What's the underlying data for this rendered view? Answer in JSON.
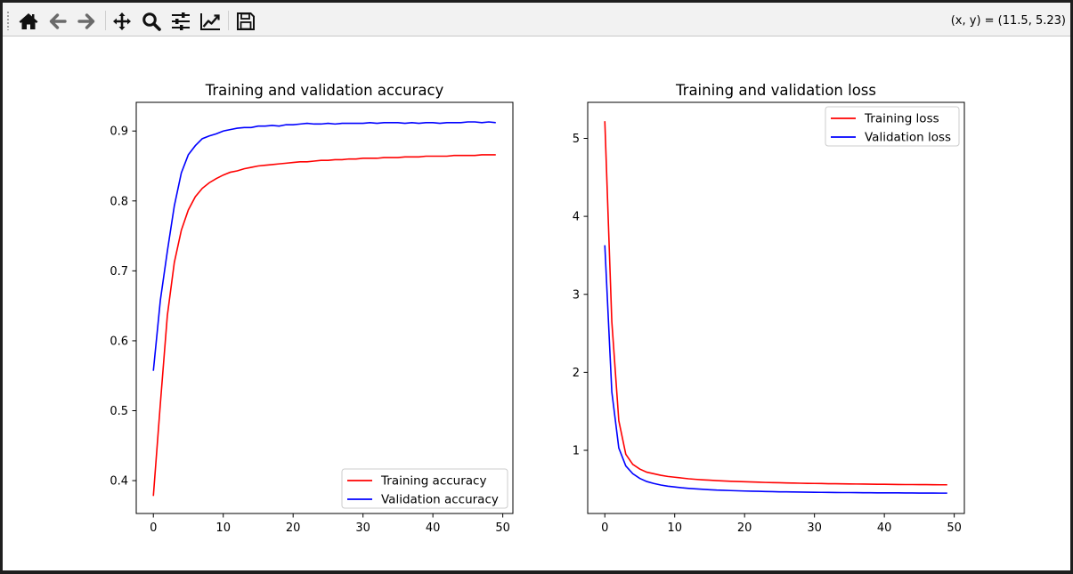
{
  "toolbar": {
    "buttons": [
      {
        "name": "home-icon",
        "icon": "home"
      },
      {
        "name": "back-icon",
        "icon": "arrow-left"
      },
      {
        "name": "forward-icon",
        "icon": "arrow-right"
      },
      {
        "name": "pan-icon",
        "icon": "move"
      },
      {
        "name": "zoom-icon",
        "icon": "magnifier"
      },
      {
        "name": "configure-subplots-icon",
        "icon": "sliders"
      },
      {
        "name": "edit-axis-icon",
        "icon": "line-chart"
      },
      {
        "name": "save-icon",
        "icon": "floppy-disk"
      }
    ],
    "coords_text": "(x, y) = (11.5, 5.23)"
  },
  "chart_data": [
    {
      "type": "line",
      "title": "Training and validation accuracy",
      "xlabel": "",
      "ylabel": "",
      "xlim": [
        -2.45,
        51.45
      ],
      "ylim": [
        0.353,
        0.941
      ],
      "xticks": [
        0,
        10,
        20,
        30,
        40,
        50
      ],
      "yticks": [
        0.4,
        0.5,
        0.6,
        0.7,
        0.8,
        0.9
      ],
      "legend": "lower-right",
      "grid": false,
      "x": [
        0,
        1,
        2,
        3,
        4,
        5,
        6,
        7,
        8,
        9,
        10,
        11,
        12,
        13,
        14,
        15,
        16,
        17,
        18,
        19,
        20,
        21,
        22,
        23,
        24,
        25,
        26,
        27,
        28,
        29,
        30,
        31,
        32,
        33,
        34,
        35,
        36,
        37,
        38,
        39,
        40,
        41,
        42,
        43,
        44,
        45,
        46,
        47,
        48,
        49
      ],
      "series": [
        {
          "name": "Training accuracy",
          "color": "#ff0000",
          "values": [
            0.378,
            0.51,
            0.636,
            0.712,
            0.758,
            0.787,
            0.806,
            0.818,
            0.826,
            0.832,
            0.837,
            0.841,
            0.843,
            0.846,
            0.848,
            0.85,
            0.851,
            0.852,
            0.853,
            0.854,
            0.855,
            0.856,
            0.856,
            0.857,
            0.858,
            0.858,
            0.859,
            0.859,
            0.86,
            0.86,
            0.861,
            0.861,
            0.861,
            0.862,
            0.862,
            0.862,
            0.863,
            0.863,
            0.863,
            0.864,
            0.864,
            0.864,
            0.864,
            0.865,
            0.865,
            0.865,
            0.865,
            0.866,
            0.866,
            0.866
          ]
        },
        {
          "name": "Validation accuracy",
          "color": "#0000ff",
          "values": [
            0.557,
            0.658,
            0.728,
            0.793,
            0.84,
            0.866,
            0.879,
            0.889,
            0.893,
            0.896,
            0.9,
            0.902,
            0.904,
            0.905,
            0.905,
            0.907,
            0.907,
            0.908,
            0.907,
            0.909,
            0.909,
            0.91,
            0.911,
            0.91,
            0.91,
            0.911,
            0.91,
            0.911,
            0.911,
            0.911,
            0.911,
            0.912,
            0.911,
            0.912,
            0.912,
            0.912,
            0.911,
            0.912,
            0.911,
            0.912,
            0.912,
            0.911,
            0.912,
            0.912,
            0.912,
            0.913,
            0.913,
            0.912,
            0.913,
            0.912
          ]
        }
      ]
    },
    {
      "type": "line",
      "title": "Training and validation loss",
      "xlabel": "",
      "ylabel": "",
      "xlim": [
        -2.45,
        51.45
      ],
      "ylim": [
        0.19,
        5.462
      ],
      "xticks": [
        0,
        10,
        20,
        30,
        40,
        50
      ],
      "yticks": [
        1,
        2,
        3,
        4,
        5
      ],
      "legend": "upper-right",
      "grid": false,
      "x": [
        0,
        1,
        2,
        3,
        4,
        5,
        6,
        7,
        8,
        9,
        10,
        11,
        12,
        13,
        14,
        15,
        16,
        17,
        18,
        19,
        20,
        21,
        22,
        23,
        24,
        25,
        26,
        27,
        28,
        29,
        30,
        31,
        32,
        33,
        34,
        35,
        36,
        37,
        38,
        39,
        40,
        41,
        42,
        43,
        44,
        45,
        46,
        47,
        48,
        49
      ],
      "series": [
        {
          "name": "Training loss",
          "color": "#ff0000",
          "values": [
            5.22,
            2.65,
            1.38,
            0.95,
            0.82,
            0.76,
            0.72,
            0.7,
            0.68,
            0.665,
            0.655,
            0.645,
            0.635,
            0.628,
            0.622,
            0.617,
            0.612,
            0.607,
            0.603,
            0.6,
            0.597,
            0.594,
            0.591,
            0.588,
            0.586,
            0.584,
            0.582,
            0.58,
            0.578,
            0.576,
            0.575,
            0.574,
            0.572,
            0.571,
            0.57,
            0.569,
            0.568,
            0.567,
            0.566,
            0.565,
            0.564,
            0.563,
            0.562,
            0.561,
            0.561,
            0.56,
            0.56,
            0.559,
            0.558,
            0.558
          ]
        },
        {
          "name": "Validation loss",
          "color": "#0000ff",
          "values": [
            3.63,
            1.75,
            1.03,
            0.8,
            0.7,
            0.64,
            0.6,
            0.575,
            0.555,
            0.54,
            0.53,
            0.52,
            0.512,
            0.506,
            0.5,
            0.495,
            0.49,
            0.487,
            0.484,
            0.481,
            0.478,
            0.476,
            0.474,
            0.472,
            0.47,
            0.468,
            0.467,
            0.466,
            0.465,
            0.463,
            0.462,
            0.461,
            0.46,
            0.459,
            0.458,
            0.458,
            0.457,
            0.456,
            0.456,
            0.455,
            0.455,
            0.454,
            0.454,
            0.453,
            0.453,
            0.452,
            0.452,
            0.452,
            0.451,
            0.451
          ]
        }
      ]
    }
  ]
}
